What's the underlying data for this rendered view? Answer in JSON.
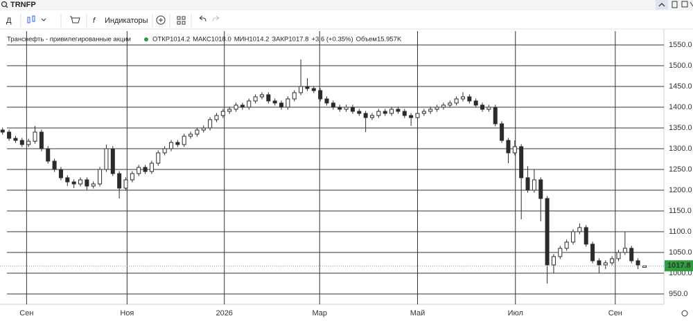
{
  "header": {
    "symbol": "TRNFP"
  },
  "toolbar": {
    "interval": "Д",
    "indicators": "Индикаторы"
  },
  "chart_data": {
    "type": "candlestick",
    "title": "Транснефть - привилегированные акции",
    "legend": [
      {
        "label": "ОТКР",
        "value": "1014.2"
      },
      {
        "label": "МАКС",
        "value": "1018.0"
      },
      {
        "label": "МИН",
        "value": "1014.2"
      },
      {
        "label": "ЗАКР",
        "value": "1017.8"
      },
      {
        "label": "+3.6 (+0.35%)"
      },
      {
        "label": "Объем",
        "value": "15.957K"
      }
    ],
    "color": "#2b2b2b",
    "last_color": "#2e9e3e",
    "xlim": [
      -0.4,
      102
    ],
    "xticks": [
      {
        "value": 3.7,
        "label": "Сен"
      },
      {
        "value": 19.2,
        "label": "Ноя"
      },
      {
        "value": 34.2,
        "label": "2026"
      },
      {
        "value": 48.9,
        "label": "Мар"
      },
      {
        "value": 64,
        "label": "Май"
      },
      {
        "value": 79.1,
        "label": "Июл"
      },
      {
        "value": 94.5,
        "label": "Сен"
      }
    ],
    "ylim": [
      925,
      1583.3
    ],
    "yticks": [
      {
        "value": 950,
        "label": "950.0"
      },
      {
        "value": 1000,
        "label": "1000.0"
      },
      {
        "value": 1050,
        "label": "1050.0"
      },
      {
        "value": 1100,
        "label": "1100.0"
      },
      {
        "value": 1150,
        "label": "1150.0"
      },
      {
        "value": 1200,
        "label": "1200.0"
      },
      {
        "value": 1250,
        "label": "1250.0"
      },
      {
        "value": 1300,
        "label": "1300.0"
      },
      {
        "value": 1350,
        "label": "1350.0"
      },
      {
        "value": 1400,
        "label": "1400.0"
      },
      {
        "value": 1450,
        "label": "1450.0"
      },
      {
        "value": 1500,
        "label": "1500.0"
      },
      {
        "value": 1550,
        "label": "1550.0"
      }
    ],
    "grid": true,
    "open": [
      1345,
      1340,
      1325,
      1320,
      1310,
      1318,
      1340,
      1300,
      1270,
      1250,
      1230,
      1220,
      1215,
      1225,
      1210,
      1215,
      1250,
      1300,
      1240,
      1205,
      1225,
      1240,
      1255,
      1245,
      1265,
      1290,
      1300,
      1315,
      1310,
      1330,
      1335,
      1345,
      1350,
      1370,
      1380,
      1390,
      1395,
      1405,
      1400,
      1415,
      1425,
      1430,
      1415,
      1410,
      1400,
      1420,
      1435,
      1450,
      1445,
      1440,
      1420,
      1410,
      1400,
      1395,
      1400,
      1390,
      1385,
      1375,
      1380,
      1390,
      1385,
      1395,
      1390,
      1380,
      1375,
      1385,
      1390,
      1395,
      1400,
      1405,
      1410,
      1420,
      1425,
      1415,
      1405,
      1395,
      1400,
      1360,
      1320,
      1290,
      1305,
      1230,
      1200,
      1225,
      1180,
      1020,
      1040,
      1060,
      1075,
      1100,
      1110,
      1070,
      1030,
      1020,
      1025,
      1035,
      1050,
      1060,
      1030,
      1014.2
    ],
    "high": [
      1351,
      1346,
      1331,
      1326,
      1324,
      1355,
      1346,
      1306,
      1276,
      1256,
      1236,
      1226,
      1231,
      1231,
      1221,
      1256,
      1310,
      1306,
      1246,
      1231,
      1246,
      1261,
      1261,
      1271,
      1296,
      1306,
      1321,
      1321,
      1336,
      1341,
      1351,
      1356,
      1376,
      1386,
      1396,
      1401,
      1411,
      1411,
      1421,
      1431,
      1436,
      1436,
      1421,
      1416,
      1426,
      1441,
      1515,
      1470,
      1451,
      1446,
      1426,
      1416,
      1406,
      1406,
      1406,
      1396,
      1391,
      1386,
      1396,
      1396,
      1401,
      1401,
      1396,
      1386,
      1391,
      1396,
      1401,
      1406,
      1411,
      1416,
      1426,
      1436,
      1431,
      1421,
      1411,
      1406,
      1406,
      1366,
      1326,
      1320,
      1311,
      1258,
      1250,
      1231,
      1186,
      1046,
      1066,
      1081,
      1106,
      1120,
      1116,
      1076,
      1036,
      1031,
      1041,
      1056,
      1100,
      1066,
      1036,
      1018
    ],
    "low": [
      1334,
      1319,
      1314,
      1304,
      1304,
      1312,
      1294,
      1264,
      1244,
      1224,
      1210,
      1205,
      1209,
      1200,
      1204,
      1209,
      1244,
      1234,
      1180,
      1199,
      1219,
      1234,
      1239,
      1239,
      1259,
      1284,
      1294,
      1304,
      1304,
      1324,
      1329,
      1339,
      1344,
      1364,
      1374,
      1384,
      1389,
      1394,
      1394,
      1409,
      1419,
      1409,
      1404,
      1394,
      1394,
      1414,
      1429,
      1439,
      1434,
      1414,
      1404,
      1394,
      1389,
      1389,
      1384,
      1379,
      1340,
      1369,
      1374,
      1379,
      1379,
      1384,
      1374,
      1355,
      1369,
      1379,
      1384,
      1389,
      1394,
      1399,
      1404,
      1414,
      1409,
      1399,
      1389,
      1389,
      1354,
      1314,
      1265,
      1284,
      1130,
      1194,
      1194,
      1125,
      975,
      1000,
      1034,
      1054,
      1069,
      1094,
      1064,
      1024,
      1000,
      1010,
      1019,
      1029,
      1044,
      1024,
      1010,
      1014.2
    ],
    "close": [
      1340,
      1325,
      1320,
      1310,
      1318,
      1340,
      1300,
      1270,
      1250,
      1230,
      1220,
      1215,
      1225,
      1210,
      1215,
      1250,
      1300,
      1240,
      1205,
      1225,
      1240,
      1255,
      1245,
      1265,
      1290,
      1300,
      1315,
      1310,
      1330,
      1335,
      1345,
      1350,
      1370,
      1380,
      1390,
      1395,
      1405,
      1400,
      1415,
      1425,
      1430,
      1415,
      1410,
      1400,
      1420,
      1435,
      1450,
      1445,
      1440,
      1420,
      1410,
      1400,
      1395,
      1400,
      1390,
      1385,
      1375,
      1380,
      1390,
      1385,
      1395,
      1390,
      1380,
      1375,
      1385,
      1390,
      1395,
      1400,
      1405,
      1410,
      1420,
      1425,
      1415,
      1405,
      1395,
      1400,
      1360,
      1320,
      1290,
      1305,
      1230,
      1200,
      1225,
      1180,
      1020,
      1040,
      1060,
      1075,
      1100,
      1110,
      1070,
      1030,
      1020,
      1025,
      1035,
      1050,
      1060,
      1030,
      1020,
      1017.8
    ]
  }
}
